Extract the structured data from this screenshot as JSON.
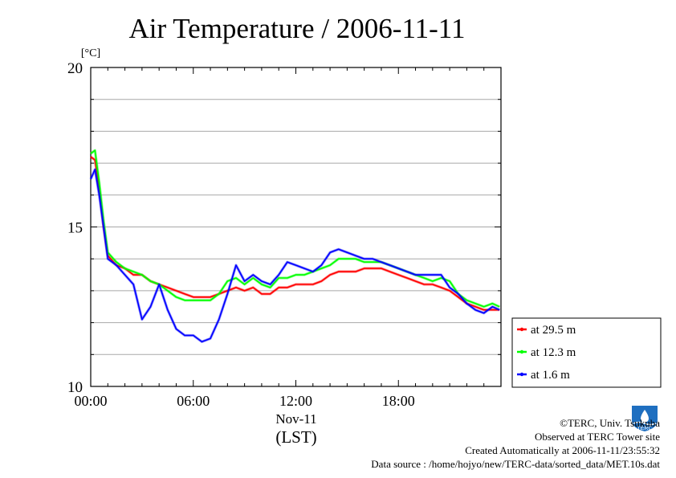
{
  "chart_data": {
    "type": "line",
    "title": "Air Temperature / 2006-11-11",
    "ylabel": "[°C]",
    "ylim": [
      10,
      20
    ],
    "yticks": [
      "10",
      "15",
      "20"
    ],
    "xlim": [
      "2006-11-11 00:00",
      "2006-11-12 00:00"
    ],
    "xticks": [
      "00:00",
      "06:00",
      "12:00",
      "18:00"
    ],
    "xlabel_date": "Nov-11",
    "xlabel": "(LST)",
    "grid": true,
    "legend_position": "right",
    "x": [
      "00:00",
      "00:15",
      "00:30",
      "00:45",
      "01:00",
      "01:30",
      "02:00",
      "02:30",
      "03:00",
      "03:30",
      "04:00",
      "04:30",
      "05:00",
      "05:30",
      "06:00",
      "06:30",
      "07:00",
      "07:30",
      "08:00",
      "08:30",
      "09:00",
      "09:30",
      "10:00",
      "10:30",
      "11:00",
      "11:30",
      "12:00",
      "12:30",
      "13:00",
      "13:30",
      "14:00",
      "14:30",
      "15:00",
      "15:30",
      "16:00",
      "16:30",
      "17:00",
      "17:30",
      "18:00",
      "18:30",
      "19:00",
      "19:30",
      "20:00",
      "20:30",
      "21:00",
      "21:30",
      "22:00",
      "22:30",
      "23:00",
      "23:30",
      "23:55"
    ],
    "series": [
      {
        "name": "at 29.5 m",
        "color": "#ff0000",
        "values": [
          17.2,
          17.1,
          16.2,
          15.0,
          14.1,
          13.8,
          13.7,
          13.5,
          13.5,
          13.3,
          13.2,
          13.1,
          13.0,
          12.9,
          12.8,
          12.8,
          12.8,
          12.9,
          13.0,
          13.1,
          13.0,
          13.1,
          12.9,
          12.9,
          13.1,
          13.1,
          13.2,
          13.2,
          13.2,
          13.3,
          13.5,
          13.6,
          13.6,
          13.6,
          13.7,
          13.7,
          13.7,
          13.6,
          13.5,
          13.4,
          13.3,
          13.2,
          13.2,
          13.1,
          13.0,
          12.8,
          12.6,
          12.5,
          12.4,
          12.4,
          12.4
        ]
      },
      {
        "name": "at 12.3 m",
        "color": "#00ff00",
        "values": [
          17.3,
          17.4,
          16.4,
          15.2,
          14.2,
          13.9,
          13.7,
          13.6,
          13.5,
          13.3,
          13.2,
          13.0,
          12.8,
          12.7,
          12.7,
          12.7,
          12.7,
          12.9,
          13.3,
          13.4,
          13.2,
          13.4,
          13.2,
          13.1,
          13.4,
          13.4,
          13.5,
          13.5,
          13.6,
          13.7,
          13.8,
          14.0,
          14.0,
          14.0,
          13.9,
          13.9,
          13.9,
          13.8,
          13.7,
          13.6,
          13.5,
          13.4,
          13.3,
          13.4,
          13.3,
          12.9,
          12.7,
          12.6,
          12.5,
          12.6,
          12.5
        ]
      },
      {
        "name": "at 1.6 m",
        "color": "#0000ff",
        "values": [
          16.5,
          16.8,
          16.0,
          15.0,
          14.0,
          13.8,
          13.5,
          13.2,
          12.1,
          12.5,
          13.2,
          12.4,
          11.8,
          11.6,
          11.6,
          11.4,
          11.5,
          12.1,
          12.9,
          13.8,
          13.3,
          13.5,
          13.3,
          13.2,
          13.5,
          13.9,
          13.8,
          13.7,
          13.6,
          13.8,
          14.2,
          14.3,
          14.2,
          14.1,
          14.0,
          14.0,
          13.9,
          13.8,
          13.7,
          13.6,
          13.5,
          13.5,
          13.5,
          13.5,
          13.1,
          12.9,
          12.6,
          12.4,
          12.3,
          12.5,
          12.4
        ]
      }
    ]
  },
  "footer": {
    "copyright": "©TERC, Univ. Tsukuba",
    "observed": "Observed at TERC Tower site",
    "created": "Created Automatically at 2006-11-11/23:55:32",
    "source": "Data source : /home/hojyo/new/TERC-data/sorted_data/MET.10s.dat",
    "logo_text": "TERC"
  }
}
